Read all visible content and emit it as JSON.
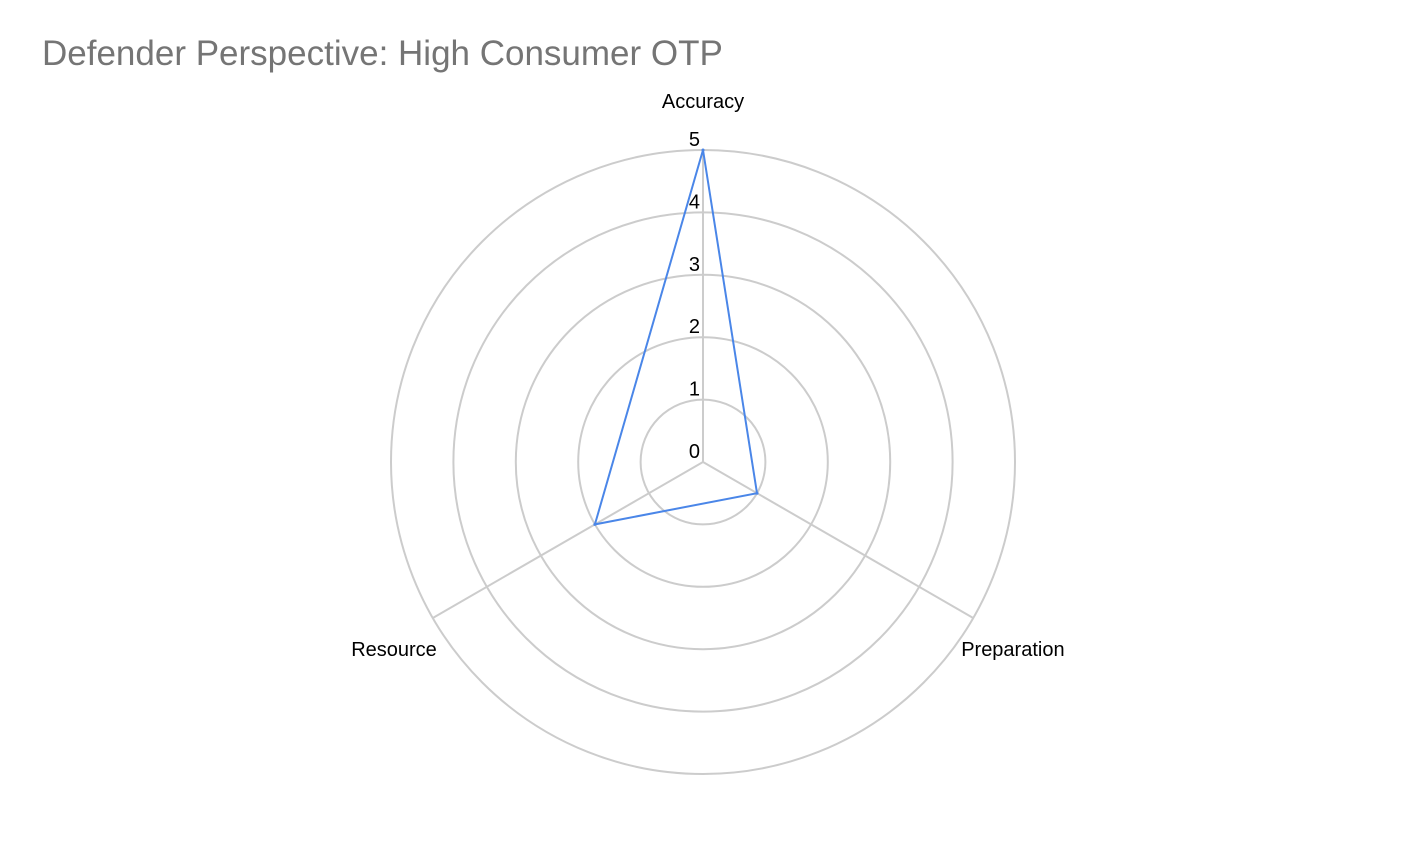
{
  "chart_data": {
    "type": "radar",
    "title": "Defender Perspective: High Consumer OTP",
    "axes": [
      "Accuracy",
      "Preparation",
      "Resource"
    ],
    "rlim": [
      0,
      5
    ],
    "r_ticks": [
      "0",
      "1",
      "2",
      "3",
      "4",
      "5"
    ],
    "grid": true,
    "legend": "none",
    "series": [
      {
        "values": [
          5,
          1,
          2
        ],
        "color": "#4a86e8"
      }
    ],
    "grid_color": "#cccccc"
  }
}
